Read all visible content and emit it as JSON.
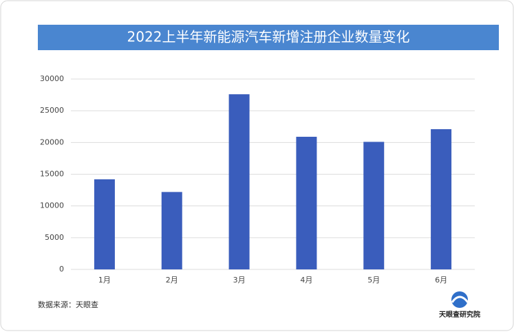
{
  "chart_data": {
    "type": "bar",
    "title": "2022上半年新能源汽车新增注册企业数量变化",
    "categories": [
      "1月",
      "2月",
      "3月",
      "4月",
      "5月",
      "6月"
    ],
    "values": [
      14200,
      12200,
      27600,
      20900,
      20100,
      22100
    ],
    "color": "#3a5dbc",
    "ylim": [
      0,
      30000
    ],
    "yticks": [
      0,
      5000,
      10000,
      15000,
      20000,
      25000,
      30000
    ],
    "grid": true,
    "source": "数据来源：天眼查",
    "logo_text": "天眼查研究院"
  }
}
